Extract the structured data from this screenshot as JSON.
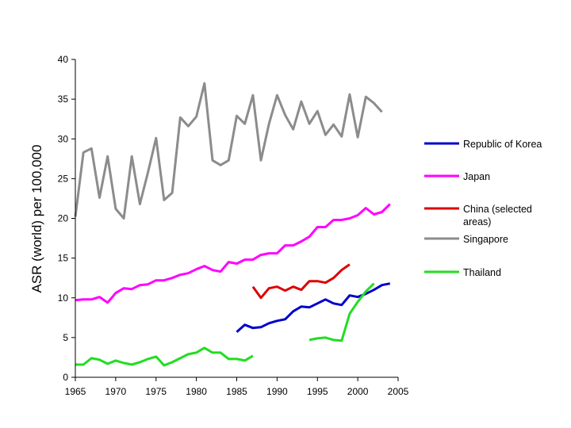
{
  "chart_data": {
    "type": "line",
    "title": "",
    "xlabel": "",
    "ylabel": "ASR (world) per 100,000",
    "xlim": [
      1965,
      2005
    ],
    "ylim": [
      0,
      40
    ],
    "xticks": [
      1965,
      1970,
      1975,
      1980,
      1985,
      1990,
      1995,
      2000,
      2005
    ],
    "yticks": [
      0,
      5,
      10,
      15,
      20,
      25,
      30,
      35,
      40
    ],
    "grid": false,
    "legend_position": "right",
    "series": [
      {
        "name": "Republic of Korea",
        "legend_label": [
          "Republic of Korea"
        ],
        "color": "#0000cc",
        "points": [
          [
            1985,
            5.7
          ],
          [
            1986,
            6.6
          ],
          [
            1987,
            6.2
          ],
          [
            1988,
            6.3
          ],
          [
            1989,
            6.8
          ],
          [
            1990,
            7.1
          ],
          [
            1991,
            7.3
          ],
          [
            1992,
            8.3
          ],
          [
            1993,
            8.9
          ],
          [
            1994,
            8.8
          ],
          [
            1995,
            9.3
          ],
          [
            1996,
            9.8
          ],
          [
            1997,
            9.3
          ],
          [
            1998,
            9.1
          ],
          [
            1999,
            10.3
          ],
          [
            2000,
            10.1
          ],
          [
            2001,
            10.5
          ],
          [
            2002,
            11.0
          ],
          [
            2003,
            11.6
          ],
          [
            2004,
            11.8
          ]
        ]
      },
      {
        "name": "Japan",
        "legend_label": [
          "Japan"
        ],
        "color": "#ff00ff",
        "points": [
          [
            1965,
            9.7
          ],
          [
            1966,
            9.8
          ],
          [
            1967,
            9.8
          ],
          [
            1968,
            10.1
          ],
          [
            1969,
            9.4
          ],
          [
            1970,
            10.6
          ],
          [
            1971,
            11.2
          ],
          [
            1972,
            11.1
          ],
          [
            1973,
            11.6
          ],
          [
            1974,
            11.7
          ],
          [
            1975,
            12.2
          ],
          [
            1976,
            12.2
          ],
          [
            1977,
            12.5
          ],
          [
            1978,
            12.9
          ],
          [
            1979,
            13.1
          ],
          [
            1980,
            13.6
          ],
          [
            1981,
            14.0
          ],
          [
            1982,
            13.5
          ],
          [
            1983,
            13.3
          ],
          [
            1984,
            14.5
          ],
          [
            1985,
            14.3
          ],
          [
            1986,
            14.8
          ],
          [
            1987,
            14.8
          ],
          [
            1988,
            15.4
          ],
          [
            1989,
            15.6
          ],
          [
            1990,
            15.6
          ],
          [
            1991,
            16.6
          ],
          [
            1992,
            16.6
          ],
          [
            1993,
            17.1
          ],
          [
            1994,
            17.7
          ],
          [
            1995,
            18.9
          ],
          [
            1996,
            18.9
          ],
          [
            1997,
            19.8
          ],
          [
            1998,
            19.8
          ],
          [
            1999,
            20.0
          ],
          [
            2000,
            20.4
          ],
          [
            2001,
            21.3
          ],
          [
            2002,
            20.5
          ],
          [
            2003,
            20.8
          ],
          [
            2004,
            21.8
          ]
        ]
      },
      {
        "name": "China (selected areas)",
        "legend_label": [
          "China (selected",
          "areas)"
        ],
        "color": "#dd0000",
        "points": [
          [
            1987,
            11.4
          ],
          [
            1988,
            10.0
          ],
          [
            1989,
            11.2
          ],
          [
            1990,
            11.4
          ],
          [
            1991,
            10.9
          ],
          [
            1992,
            11.4
          ],
          [
            1993,
            11.0
          ],
          [
            1994,
            12.1
          ],
          [
            1995,
            12.1
          ],
          [
            1996,
            11.9
          ],
          [
            1997,
            12.5
          ],
          [
            1998,
            13.5
          ],
          [
            1999,
            14.2
          ]
        ]
      },
      {
        "name": "Singapore",
        "legend_label": [
          "Singapore"
        ],
        "color": "#8c8c8c",
        "points": [
          [
            1965,
            20.2
          ],
          [
            1966,
            28.3
          ],
          [
            1967,
            28.8
          ],
          [
            1968,
            22.6
          ],
          [
            1969,
            27.8
          ],
          [
            1970,
            21.2
          ],
          [
            1971,
            20.0
          ],
          [
            1972,
            27.8
          ],
          [
            1973,
            21.8
          ],
          [
            1974,
            25.8
          ],
          [
            1975,
            30.1
          ],
          [
            1976,
            22.3
          ],
          [
            1977,
            23.2
          ],
          [
            1978,
            32.7
          ],
          [
            1979,
            31.6
          ],
          [
            1980,
            32.8
          ],
          [
            1981,
            37.0
          ],
          [
            1982,
            27.3
          ],
          [
            1983,
            26.7
          ],
          [
            1984,
            27.3
          ],
          [
            1985,
            32.9
          ],
          [
            1986,
            31.9
          ],
          [
            1987,
            35.5
          ],
          [
            1988,
            27.3
          ],
          [
            1989,
            31.9
          ],
          [
            1990,
            35.5
          ],
          [
            1991,
            33.0
          ],
          [
            1992,
            31.2
          ],
          [
            1993,
            34.7
          ],
          [
            1994,
            31.9
          ],
          [
            1995,
            33.5
          ],
          [
            1996,
            30.5
          ],
          [
            1997,
            31.8
          ],
          [
            1998,
            30.3
          ],
          [
            1999,
            35.6
          ],
          [
            2000,
            30.2
          ],
          [
            2001,
            35.3
          ],
          [
            2002,
            34.5
          ],
          [
            2003,
            33.4
          ]
        ]
      },
      {
        "name": "Thailand",
        "legend_label": [
          "Thailand"
        ],
        "color": "#22dd22",
        "segments": [
          [
            [
              1965,
              1.6
            ],
            [
              1966,
              1.6
            ],
            [
              1967,
              2.4
            ],
            [
              1968,
              2.2
            ],
            [
              1969,
              1.7
            ],
            [
              1970,
              2.1
            ],
            [
              1971,
              1.8
            ],
            [
              1972,
              1.6
            ],
            [
              1973,
              1.9
            ],
            [
              1974,
              2.3
            ],
            [
              1975,
              2.6
            ],
            [
              1976,
              1.5
            ],
            [
              1977,
              1.9
            ],
            [
              1978,
              2.4
            ],
            [
              1979,
              2.9
            ],
            [
              1980,
              3.1
            ],
            [
              1981,
              3.7
            ],
            [
              1982,
              3.1
            ],
            [
              1983,
              3.1
            ],
            [
              1984,
              2.3
            ],
            [
              1985,
              2.3
            ],
            [
              1986,
              2.1
            ],
            [
              1987,
              2.7
            ]
          ],
          [
            [
              1994,
              4.7
            ],
            [
              1995,
              4.9
            ],
            [
              1996,
              5.0
            ],
            [
              1997,
              4.7
            ],
            [
              1998,
              4.6
            ],
            [
              1999,
              8.0
            ],
            [
              2000,
              9.5
            ],
            [
              2001,
              10.8
            ],
            [
              2002,
              11.8
            ]
          ]
        ]
      }
    ]
  }
}
